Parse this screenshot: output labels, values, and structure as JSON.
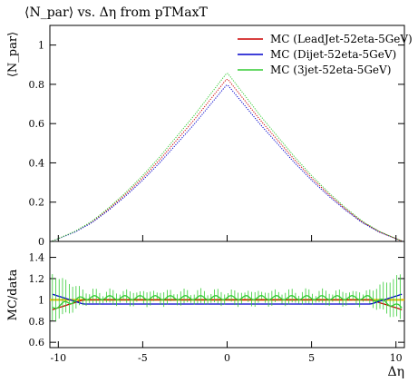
{
  "title": "⟨N_par⟩ vs. Δη from pTMaxT",
  "chart_data": {
    "type": "line",
    "main": {
      "ylabel": "⟨N_par⟩",
      "xlim": [
        -10.5,
        10.5
      ],
      "ylim": [
        0,
        1.1
      ],
      "yticks": [
        0,
        0.2,
        0.4,
        0.6,
        0.8,
        1
      ],
      "ytick_labels": [
        "0",
        "0.2",
        "0.4",
        "0.6",
        "0.8",
        "1"
      ],
      "peak_x": 0,
      "shape_points_x": [
        -10.4,
        -9,
        -8,
        -7,
        -6,
        -5,
        -4,
        -3,
        -2,
        -1,
        0,
        1,
        2,
        3,
        4,
        5,
        6,
        7,
        8,
        9,
        10.4
      ],
      "shape_points_frac": [
        0,
        0.06,
        0.12,
        0.2,
        0.29,
        0.39,
        0.5,
        0.62,
        0.74,
        0.87,
        1.0,
        0.87,
        0.74,
        0.62,
        0.5,
        0.39,
        0.29,
        0.2,
        0.12,
        0.06,
        0
      ]
    },
    "series": [
      {
        "name": "MC (LeadJet-52eta-5GeV)",
        "color": "#cc0000",
        "peak": 0.83,
        "ratio": 1.0
      },
      {
        "name": "MC (Dijet-52eta-5GeV)",
        "color": "#0000cc",
        "peak": 0.8,
        "ratio": 0.96
      },
      {
        "name": "MC (3jet-52eta-5GeV)",
        "color": "#33cc33",
        "peak": 0.86,
        "ratio": 1.02
      }
    ],
    "ratio": {
      "ylabel": "MC/data",
      "ylim": [
        0.55,
        1.55
      ],
      "yticks": [
        0.6,
        0.8,
        1,
        1.2,
        1.4
      ],
      "ytick_labels": [
        "0.6",
        "0.8",
        "1",
        "1.2",
        "1.4"
      ],
      "reference_color": "#e6b800"
    },
    "xticks": [
      -10,
      -5,
      0,
      5,
      10
    ],
    "xtick_labels": [
      "-10",
      "-5",
      "0",
      "5",
      "10"
    ],
    "xlabel": "Δη"
  }
}
